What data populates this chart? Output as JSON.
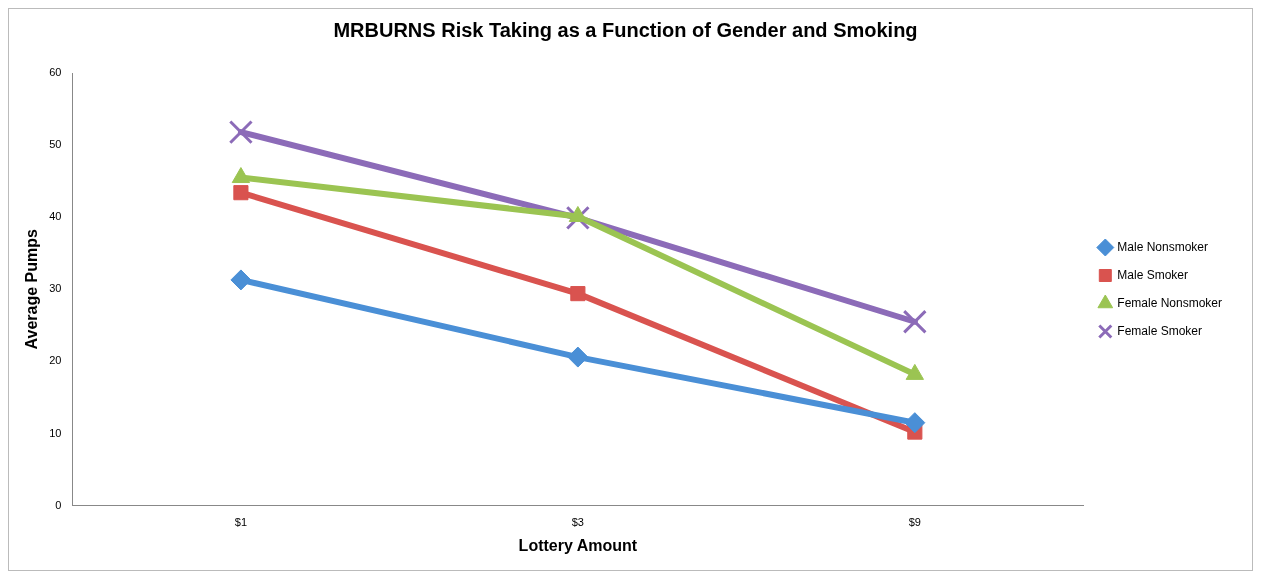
{
  "chart_data": {
    "type": "line",
    "title": "MRBURNS Risk Taking as a Function of Gender and Smoking",
    "xlabel": "Lottery Amount",
    "ylabel": "Average Pumps",
    "categories": [
      "$1",
      "$3",
      "$9"
    ],
    "ylim": [
      0,
      60
    ],
    "yticks": [
      0,
      10,
      20,
      30,
      40,
      50,
      60
    ],
    "grid": false,
    "legend": "right",
    "series": [
      {
        "name": "Male Nonsmoker",
        "color": "#4a8fd6",
        "marker": "diamond",
        "values": [
          31.3,
          20.6,
          11.5
        ]
      },
      {
        "name": "Male Smoker",
        "color": "#d9534f",
        "marker": "square",
        "values": [
          43.4,
          29.4,
          10.2
        ]
      },
      {
        "name": "Female Nonsmoker",
        "color": "#9bc452",
        "marker": "triangle",
        "values": [
          45.5,
          40.1,
          18.2
        ]
      },
      {
        "name": "Female Smoker",
        "color": "#8c6bb8",
        "marker": "cross",
        "values": [
          51.8,
          39.9,
          25.5
        ]
      }
    ]
  }
}
